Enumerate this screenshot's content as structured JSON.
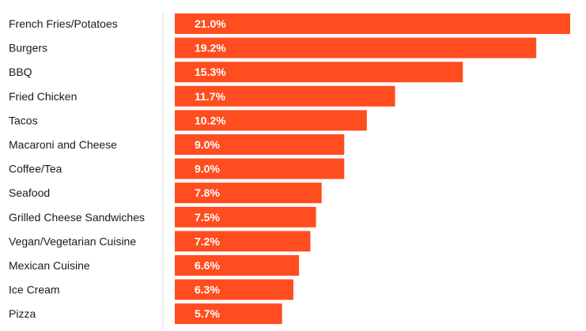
{
  "chart_data": {
    "type": "bar",
    "orientation": "horizontal",
    "categories": [
      "French Fries/Potatoes",
      "Burgers",
      "BBQ",
      "Fried Chicken",
      "Tacos",
      "Macaroni and Cheese",
      "Coffee/Tea",
      "Seafood",
      "Grilled Cheese Sandwiches",
      "Vegan/Vegetarian Cuisine",
      "Mexican Cuisine",
      "Ice Cream",
      "Pizza"
    ],
    "values": [
      21.0,
      19.2,
      15.3,
      11.7,
      10.2,
      9.0,
      9.0,
      7.8,
      7.5,
      7.2,
      6.6,
      6.3,
      5.7
    ],
    "value_labels": [
      "21.0%",
      "19.2%",
      "15.3%",
      "11.7%",
      "10.2%",
      "9.0%",
      "9.0%",
      "7.8%",
      "7.5%",
      "7.2%",
      "6.6%",
      "6.3%",
      "5.7%"
    ],
    "title": "",
    "xlabel": "",
    "ylabel": "",
    "xlim": [
      0,
      21.0
    ],
    "bar_color": "#ff4d1f",
    "grid": false,
    "legend": "none"
  }
}
